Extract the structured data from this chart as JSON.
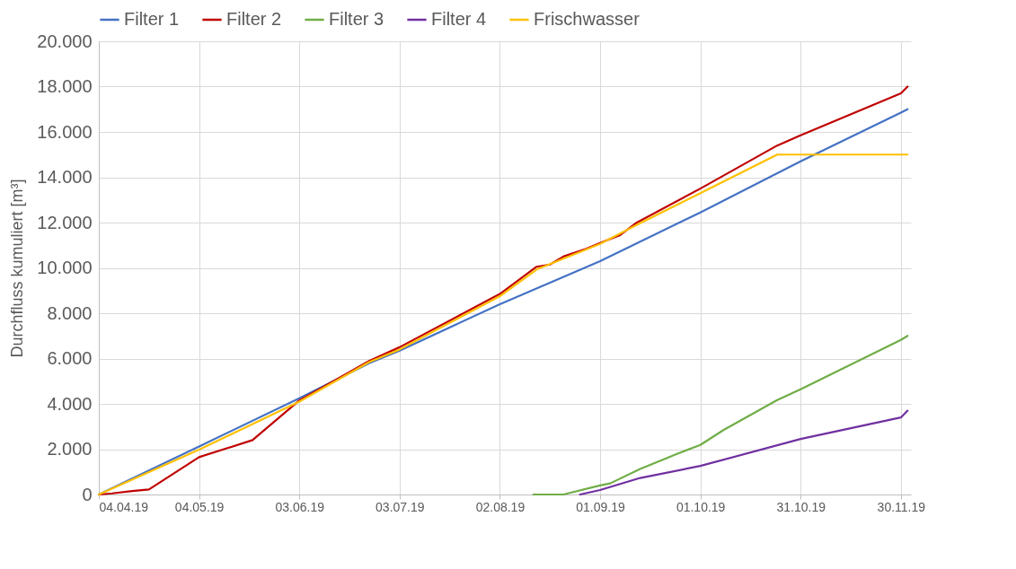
{
  "chart_data": {
    "type": "line",
    "ylabel": "Durchfluss kumuliert [m³]",
    "legend": "top",
    "grid": true,
    "xlim": [
      "2019-04-04",
      "2019-12-03"
    ],
    "xticks": [
      {
        "value": "2019-04-04",
        "label": "04.04.19"
      },
      {
        "value": "2019-05-04",
        "label": "04.05.19"
      },
      {
        "value": "2019-06-03",
        "label": "03.06.19"
      },
      {
        "value": "2019-07-03",
        "label": "03.07.19"
      },
      {
        "value": "2019-08-02",
        "label": "02.08.19"
      },
      {
        "value": "2019-09-01",
        "label": "01.09.19"
      },
      {
        "value": "2019-10-01",
        "label": "01.10.19"
      },
      {
        "value": "2019-10-31",
        "label": "31.10.19"
      },
      {
        "value": "2019-11-30",
        "label": "30.11.19"
      }
    ],
    "ylim": [
      0,
      20000
    ],
    "yticks": [
      0,
      {
        "value": 2000,
        "label": "2.000"
      },
      {
        "value": 4000,
        "label": "4.000"
      },
      {
        "value": 6000,
        "label": "6.000"
      },
      {
        "value": 8000,
        "label": "8.000"
      },
      {
        "value": 10000,
        "label": "10.000"
      },
      {
        "value": 12000,
        "label": "12.000"
      },
      {
        "value": 14000,
        "label": "14.000"
      },
      {
        "value": 16000,
        "label": "16.000"
      },
      {
        "value": 18000,
        "label": "18.000"
      },
      {
        "value": 20000,
        "label": "20.000"
      }
    ],
    "series": [
      {
        "name": "Filter 1",
        "color": "#4472c4",
        "x": [
          "2019-04-04",
          "2019-05-04",
          "2019-06-03",
          "2019-06-24",
          "2019-07-03",
          "2019-08-02",
          "2019-09-01",
          "2019-10-01",
          "2019-10-31",
          "2019-11-30",
          "2019-12-02"
        ],
        "values": [
          0,
          2120,
          4250,
          5800,
          6350,
          8400,
          10300,
          12450,
          14700,
          16850,
          17000
        ]
      },
      {
        "name": "Filter 2",
        "color": "#c00000",
        "x": [
          "2019-04-04",
          "2019-04-08",
          "2019-04-14",
          "2019-04-19",
          "2019-05-04",
          "2019-05-20",
          "2019-06-03",
          "2019-06-24",
          "2019-07-03",
          "2019-08-02",
          "2019-08-13",
          "2019-08-17",
          "2019-08-21",
          "2019-08-28",
          "2019-09-01",
          "2019-09-07",
          "2019-09-12",
          "2019-10-01",
          "2019-10-24",
          "2019-10-31",
          "2019-11-30",
          "2019-12-02"
        ],
        "values": [
          0,
          50,
          150,
          220,
          1650,
          2400,
          4150,
          5900,
          6500,
          8850,
          10050,
          10150,
          10500,
          10850,
          11100,
          11450,
          12000,
          13500,
          15400,
          15850,
          17700,
          18000
        ]
      },
      {
        "name": "Filter 3",
        "color": "#70ad47",
        "x": [
          "2019-08-12",
          "2019-08-21",
          "2019-09-01",
          "2019-09-04",
          "2019-09-13",
          "2019-09-24",
          "2019-10-01",
          "2019-10-08",
          "2019-10-24",
          "2019-10-31",
          "2019-11-30",
          "2019-12-02"
        ],
        "values": [
          0,
          0,
          400,
          490,
          1130,
          1790,
          2190,
          2850,
          4170,
          4640,
          6820,
          7000
        ]
      },
      {
        "name": "Filter 4",
        "color": "#7030a0",
        "x": [
          "2019-08-26",
          "2019-09-01",
          "2019-09-13",
          "2019-10-01",
          "2019-10-31",
          "2019-11-30",
          "2019-12-02"
        ],
        "values": [
          0,
          200,
          730,
          1260,
          2450,
          3400,
          3700
        ]
      },
      {
        "name": "Frischwasser",
        "color": "#ffc000",
        "x": [
          "2019-04-04",
          "2019-05-04",
          "2019-06-03",
          "2019-06-24",
          "2019-07-03",
          "2019-08-02",
          "2019-08-13",
          "2019-09-01",
          "2019-09-12",
          "2019-10-01",
          "2019-10-24",
          "2019-12-02"
        ],
        "values": [
          0,
          1980,
          4100,
          5850,
          6400,
          8750,
          9930,
          11060,
          11900,
          13300,
          15000,
          15000
        ]
      }
    ]
  }
}
